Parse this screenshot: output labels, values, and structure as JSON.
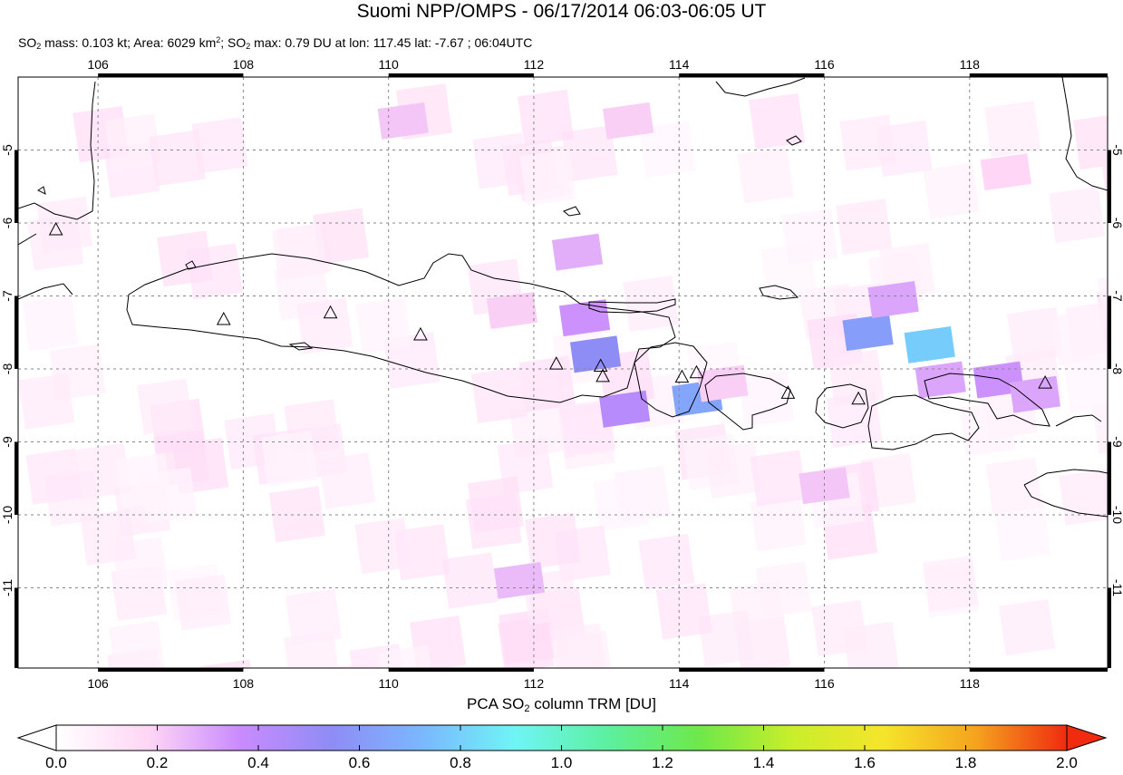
{
  "title": "Suomi NPP/OMPS - 06/17/2014 06:03-06:05 UT",
  "subtitle": {
    "p1": "SO",
    "p1_sub": "2",
    "p2": " mass: 0.103 kt; Area: 6029 km",
    "p2_sup": "2",
    "p3": "; SO",
    "p3_sub": "2",
    "p4": " max: 0.79 DU at lon: 117.45 lat: -7.67 ; 06:04UTC"
  },
  "map": {
    "lon_ticks": [
      "106",
      "108",
      "110",
      "112",
      "114",
      "116",
      "118"
    ],
    "lat_ticks": [
      "-5",
      "-6",
      "-7",
      "-8",
      "-9",
      "-10",
      "-11"
    ],
    "lon_range": [
      104.9,
      119.9
    ],
    "lat_range": [
      -12.1,
      -4.0
    ]
  },
  "colorbar": {
    "title_a": "PCA SO",
    "title_sub": "2",
    "title_b": " column TRM [DU]",
    "labels": [
      "0.0",
      "0.2",
      "0.4",
      "0.6",
      "0.8",
      "1.0",
      "1.2",
      "1.4",
      "1.6",
      "1.8",
      "2.0"
    ],
    "range": [
      0,
      2
    ],
    "colors": [
      "#ffffff",
      "#ffd6f5",
      "#c98bff",
      "#8f8cf5",
      "#7ab8ff",
      "#6ff5f5",
      "#5cf0a0",
      "#6ee84a",
      "#c8ee2a",
      "#f5e52a",
      "#f5a41e",
      "#f02b10"
    ]
  },
  "so2_pixels": [
    {
      "lon": 116.6,
      "lat": -7.5,
      "v": 0.62
    },
    {
      "lon": 117.45,
      "lat": -7.67,
      "v": 0.79
    },
    {
      "lon": 112.85,
      "lat": -7.8,
      "v": 0.55
    },
    {
      "lon": 114.25,
      "lat": -8.4,
      "v": 0.65
    },
    {
      "lon": 113.25,
      "lat": -8.55,
      "v": 0.42
    },
    {
      "lon": 112.7,
      "lat": -7.3,
      "v": 0.35
    },
    {
      "lon": 116.95,
      "lat": -7.05,
      "v": 0.3
    },
    {
      "lon": 118.4,
      "lat": -8.15,
      "v": 0.35
    },
    {
      "lon": 117.6,
      "lat": -8.15,
      "v": 0.3
    },
    {
      "lon": 118.9,
      "lat": -8.35,
      "v": 0.3
    },
    {
      "lon": 112.6,
      "lat": -6.4,
      "v": 0.28
    },
    {
      "lon": 110.2,
      "lat": -4.6,
      "v": 0.22
    },
    {
      "lon": 113.3,
      "lat": -4.6,
      "v": 0.2
    },
    {
      "lon": 111.7,
      "lat": -7.2,
      "v": 0.2
    },
    {
      "lon": 114.6,
      "lat": -8.2,
      "v": 0.2
    },
    {
      "lon": 118.5,
      "lat": -5.3,
      "v": 0.18
    },
    {
      "lon": 111.8,
      "lat": -10.9,
      "v": 0.25
    },
    {
      "lon": 116.0,
      "lat": -9.6,
      "v": 0.22
    }
  ],
  "volcanoes": [
    {
      "lon": 105.42,
      "lat": -6.1
    },
    {
      "lon": 107.73,
      "lat": -7.33
    },
    {
      "lon": 109.2,
      "lat": -7.24
    },
    {
      "lon": 110.44,
      "lat": -7.54
    },
    {
      "lon": 112.31,
      "lat": -7.94
    },
    {
      "lon": 112.92,
      "lat": -7.97
    },
    {
      "lon": 112.95,
      "lat": -8.11
    },
    {
      "lon": 114.04,
      "lat": -8.12
    },
    {
      "lon": 114.24,
      "lat": -8.06
    },
    {
      "lon": 115.5,
      "lat": -8.34
    },
    {
      "lon": 116.47,
      "lat": -8.42
    },
    {
      "lon": 119.04,
      "lat": -8.2
    }
  ]
}
